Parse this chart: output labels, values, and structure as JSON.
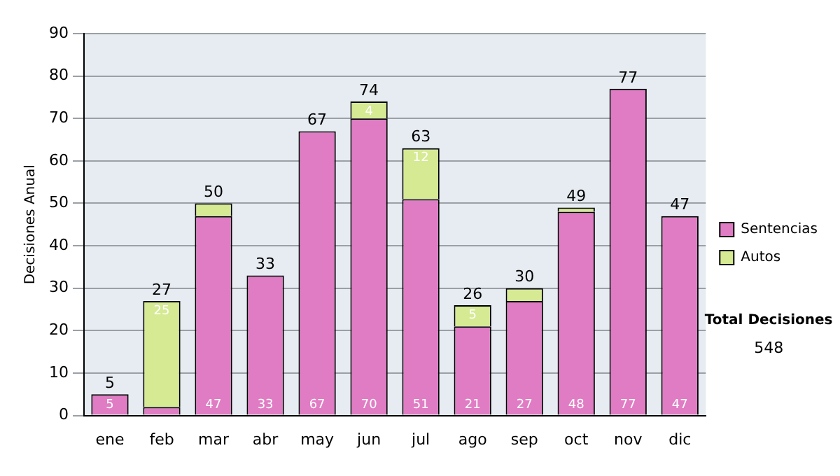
{
  "chart_data": {
    "type": "bar",
    "stacked": true,
    "ylabel": "Decisiones Anual",
    "categories": [
      "ene",
      "feb",
      "mar",
      "abr",
      "may",
      "jun",
      "jul",
      "ago",
      "sep",
      "oct",
      "nov",
      "dic"
    ],
    "series": [
      {
        "name": "Sentencias",
        "color": "#e07cc4",
        "values": [
          5,
          2,
          47,
          33,
          67,
          70,
          51,
          21,
          27,
          48,
          77,
          47
        ],
        "value_labels": [
          "5",
          null,
          "47",
          "33",
          "67",
          "70",
          "51",
          "21",
          "27",
          "48",
          "77",
          "47"
        ]
      },
      {
        "name": "Autos",
        "color": "#d6ea94",
        "values": [
          0,
          25,
          3,
          0,
          0,
          4,
          12,
          5,
          3,
          1,
          0,
          0
        ],
        "value_labels": [
          null,
          "25",
          null,
          null,
          null,
          "4",
          "12",
          "5",
          null,
          null,
          null,
          null
        ]
      }
    ],
    "totals": [
      "5",
      "27",
      "50",
      "33",
      "67",
      "74",
      "63",
      "26",
      "30",
      "49",
      "77",
      "47"
    ],
    "ylim": [
      0,
      90
    ],
    "yticks": [
      0,
      10,
      20,
      30,
      40,
      50,
      60,
      70,
      80,
      90
    ],
    "grid": "y",
    "legend": "right",
    "annotations": [
      "Total Decisiones",
      "548"
    ]
  }
}
